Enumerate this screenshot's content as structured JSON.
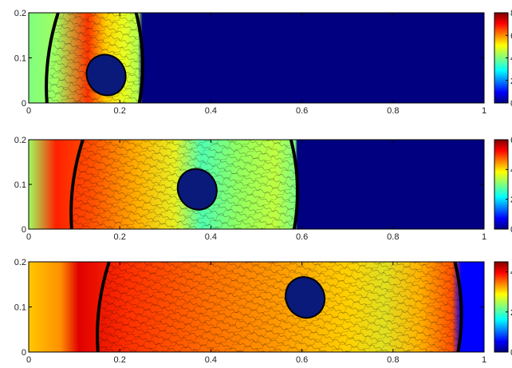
{
  "chart_data": [
    {
      "type": "heatmap",
      "title": "",
      "xlabel": "",
      "ylabel": "",
      "xlim": [
        0,
        1
      ],
      "ylim": [
        0,
        0.2
      ],
      "xticks": [
        "0",
        "0.2",
        "0.4",
        "0.6",
        "0.8",
        "1"
      ],
      "yticks": [
        "0",
        "0.1",
        "0.2"
      ],
      "colorbar": {
        "colormap": "jet",
        "ticks": [
          "0",
          "2",
          "4",
          "6",
          "8"
        ],
        "max": 8
      },
      "obstacle": {
        "shape": "ellipse",
        "center_x": 0.17,
        "center_y": 0.062,
        "color": "#0a1a7a"
      },
      "shock_front_x": 0.25,
      "left_state_value": 4.2,
      "right_state_value": 0.2,
      "grid": false
    },
    {
      "type": "heatmap",
      "title": "",
      "xlabel": "",
      "ylabel": "",
      "xlim": [
        0,
        1
      ],
      "ylim": [
        0,
        0.2
      ],
      "xticks": [
        "0",
        "0.2",
        "0.4",
        "0.6",
        "0.8",
        "1"
      ],
      "yticks": [
        "0",
        "0.1",
        "0.2"
      ],
      "colorbar": {
        "colormap": "jet",
        "ticks": [
          "0",
          "2",
          "4",
          "6"
        ],
        "max": 6
      },
      "obstacle": {
        "shape": "ellipse",
        "center_x": 0.37,
        "center_y": 0.089,
        "color": "#0a1a7a"
      },
      "shock_front_x": 0.59,
      "left_state_value": 4.6,
      "right_state_value": 0.2,
      "grid": false
    },
    {
      "type": "heatmap",
      "title": "",
      "xlabel": "",
      "ylabel": "",
      "xlim": [
        0,
        1
      ],
      "ylim": [
        0,
        0.2
      ],
      "xticks": [
        "0",
        "0.2",
        "0.4",
        "0.6",
        "0.8",
        "1"
      ],
      "yticks": [
        "0",
        "0.1",
        "0.2"
      ],
      "colorbar": {
        "colormap": "jet",
        "ticks": [
          "0",
          "2",
          "4"
        ],
        "max": 4.5
      },
      "obstacle": {
        "shape": "ellipse",
        "center_x": 0.607,
        "center_y": 0.121,
        "color": "#0a1a7a"
      },
      "shock_front_x": 0.95,
      "left_state_value": 3.2,
      "right_state_value": 0.2,
      "grid": false
    }
  ]
}
